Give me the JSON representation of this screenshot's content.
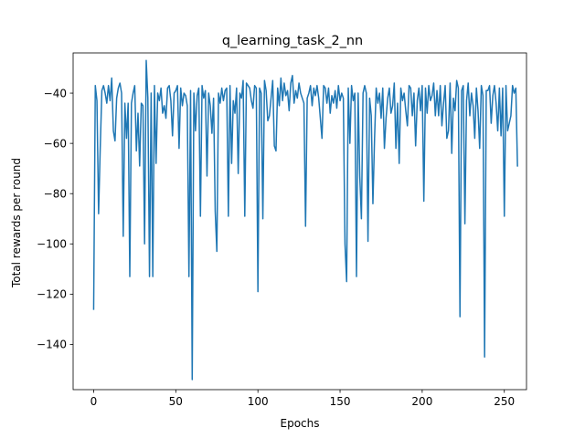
{
  "chart_data": {
    "type": "line",
    "title": "q_learning_task_2_nn",
    "xlabel": "Epochs",
    "ylabel": "Total rewards per round",
    "xlim": [
      -12.5,
      263.5
    ],
    "ylim": [
      -158,
      -24
    ],
    "xticks": [
      0,
      50,
      100,
      150,
      200,
      250
    ],
    "yticks": [
      -140,
      -120,
      -100,
      -80,
      -60,
      -40
    ],
    "grid": false,
    "line_color": "#1f77b4",
    "series": [
      {
        "values": [
          -126,
          -37,
          -43,
          -88,
          -62,
          -39,
          -37,
          -40,
          -44,
          -37,
          -43,
          -34,
          -55,
          -59,
          -42,
          -38,
          -36,
          -40,
          -97,
          -44,
          -58,
          -44,
          -113,
          -44,
          -40,
          -37,
          -63,
          -48,
          -69,
          -44,
          -45,
          -100,
          -27,
          -42,
          -113,
          -40,
          -113,
          -37,
          -68,
          -40,
          -43,
          -38,
          -48,
          -45,
          -50,
          -38,
          -37,
          -43,
          -57,
          -40,
          -39,
          -37,
          -62,
          -38,
          -45,
          -40,
          -41,
          -45,
          -113,
          -39,
          -154,
          -40,
          -55,
          -41,
          -38,
          -89,
          -37,
          -42,
          -39,
          -73,
          -40,
          -45,
          -56,
          -42,
          -87,
          -103,
          -40,
          -44,
          -38,
          -43,
          -39,
          -38,
          -89,
          -37,
          -68,
          -43,
          -48,
          -38,
          -72,
          -40,
          -42,
          -35,
          -89,
          -36,
          -37,
          -38,
          -43,
          -46,
          -37,
          -38,
          -119,
          -38,
          -40,
          -90,
          -35,
          -39,
          -51,
          -49,
          -42,
          -35,
          -61,
          -63,
          -38,
          -45,
          -34,
          -43,
          -36,
          -41,
          -39,
          -47,
          -36,
          -33,
          -44,
          -39,
          -42,
          -36,
          -40,
          -42,
          -44,
          -93,
          -42,
          -40,
          -37,
          -45,
          -38,
          -41,
          -37,
          -42,
          -50,
          -58,
          -37,
          -38,
          -44,
          -38,
          -48,
          -41,
          -44,
          -39,
          -46,
          -37,
          -43,
          -40,
          -42,
          -100,
          -115,
          -38,
          -60,
          -37,
          -43,
          -40,
          -113,
          -40,
          -73,
          -90,
          -40,
          -37,
          -40,
          -99,
          -42,
          -49,
          -84,
          -58,
          -38,
          -44,
          -40,
          -50,
          -38,
          -62,
          -50,
          -42,
          -38,
          -48,
          -45,
          -36,
          -62,
          -44,
          -68,
          -38,
          -43,
          -40,
          -47,
          -53,
          -37,
          -38,
          -49,
          -40,
          -61,
          -43,
          -38,
          -47,
          -37,
          -83,
          -38,
          -48,
          -37,
          -43,
          -41,
          -36,
          -49,
          -39,
          -49,
          -37,
          -53,
          -44,
          -37,
          -58,
          -55,
          -36,
          -64,
          -42,
          -47,
          -35,
          -38,
          -129,
          -39,
          -37,
          -92,
          -43,
          -36,
          -49,
          -40,
          -45,
          -58,
          -38,
          -47,
          -62,
          -37,
          -41,
          -145,
          -39,
          -39,
          -37,
          -52,
          -41,
          -37,
          -44,
          -55,
          -38,
          -57,
          -38,
          -89,
          -37,
          -55,
          -52,
          -49,
          -37,
          -40,
          -38,
          -69
        ]
      }
    ]
  }
}
